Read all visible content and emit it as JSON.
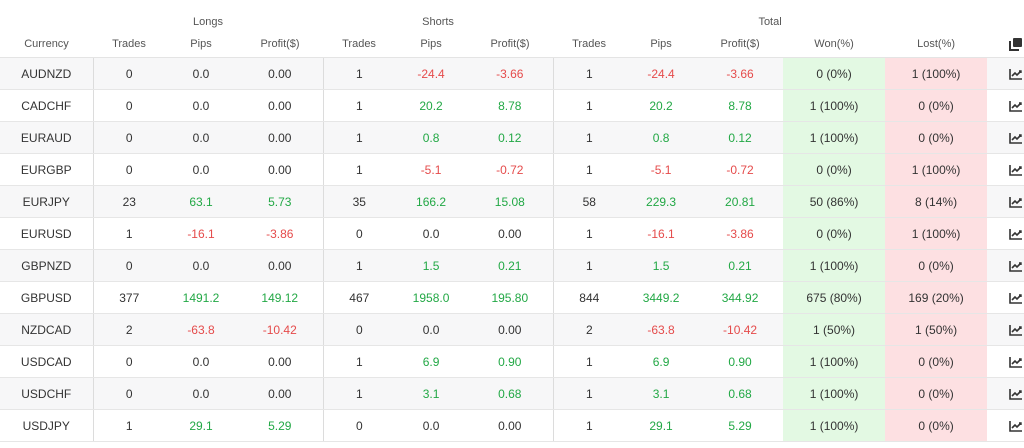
{
  "groups": {
    "longs": "Longs",
    "shorts": "Shorts",
    "total": "Total"
  },
  "columns": {
    "currency": "Currency",
    "longs_trades": "Trades",
    "longs_pips": "Pips",
    "longs_profit": "Profit($)",
    "shorts_trades": "Trades",
    "shorts_pips": "Pips",
    "shorts_profit": "Profit($)",
    "total_trades": "Trades",
    "total_pips": "Pips",
    "total_profit": "Profit($)",
    "won": "Won(%)",
    "lost": "Lost(%)"
  },
  "icons": {
    "header": "copy-icon",
    "row": "chart-line-icon"
  },
  "colors": {
    "positive": "#22a845",
    "negative": "#e54b4b",
    "won_bg": "#e3f9e3",
    "lost_bg": "#fde0e2"
  },
  "rows": [
    {
      "currency": "AUDNZD",
      "l_trades": "0",
      "l_pips": "0.0",
      "l_profit": "0.00",
      "s_trades": "1",
      "s_pips": "-24.4",
      "s_profit": "-3.66",
      "t_trades": "1",
      "t_pips": "-24.4",
      "t_profit": "-3.66",
      "won": "0 (0%)",
      "lost": "1 (100%)"
    },
    {
      "currency": "CADCHF",
      "l_trades": "0",
      "l_pips": "0.0",
      "l_profit": "0.00",
      "s_trades": "1",
      "s_pips": "20.2",
      "s_profit": "8.78",
      "t_trades": "1",
      "t_pips": "20.2",
      "t_profit": "8.78",
      "won": "1 (100%)",
      "lost": "0 (0%)"
    },
    {
      "currency": "EURAUD",
      "l_trades": "0",
      "l_pips": "0.0",
      "l_profit": "0.00",
      "s_trades": "1",
      "s_pips": "0.8",
      "s_profit": "0.12",
      "t_trades": "1",
      "t_pips": "0.8",
      "t_profit": "0.12",
      "won": "1 (100%)",
      "lost": "0 (0%)"
    },
    {
      "currency": "EURGBP",
      "l_trades": "0",
      "l_pips": "0.0",
      "l_profit": "0.00",
      "s_trades": "1",
      "s_pips": "-5.1",
      "s_profit": "-0.72",
      "t_trades": "1",
      "t_pips": "-5.1",
      "t_profit": "-0.72",
      "won": "0 (0%)",
      "lost": "1 (100%)"
    },
    {
      "currency": "EURJPY",
      "l_trades": "23",
      "l_pips": "63.1",
      "l_profit": "5.73",
      "s_trades": "35",
      "s_pips": "166.2",
      "s_profit": "15.08",
      "t_trades": "58",
      "t_pips": "229.3",
      "t_profit": "20.81",
      "won": "50 (86%)",
      "lost": "8 (14%)"
    },
    {
      "currency": "EURUSD",
      "l_trades": "1",
      "l_pips": "-16.1",
      "l_profit": "-3.86",
      "s_trades": "0",
      "s_pips": "0.0",
      "s_profit": "0.00",
      "t_trades": "1",
      "t_pips": "-16.1",
      "t_profit": "-3.86",
      "won": "0 (0%)",
      "lost": "1 (100%)"
    },
    {
      "currency": "GBPNZD",
      "l_trades": "0",
      "l_pips": "0.0",
      "l_profit": "0.00",
      "s_trades": "1",
      "s_pips": "1.5",
      "s_profit": "0.21",
      "t_trades": "1",
      "t_pips": "1.5",
      "t_profit": "0.21",
      "won": "1 (100%)",
      "lost": "0 (0%)"
    },
    {
      "currency": "GBPUSD",
      "l_trades": "377",
      "l_pips": "1491.2",
      "l_profit": "149.12",
      "s_trades": "467",
      "s_pips": "1958.0",
      "s_profit": "195.80",
      "t_trades": "844",
      "t_pips": "3449.2",
      "t_profit": "344.92",
      "won": "675 (80%)",
      "lost": "169 (20%)"
    },
    {
      "currency": "NZDCAD",
      "l_trades": "2",
      "l_pips": "-63.8",
      "l_profit": "-10.42",
      "s_trades": "0",
      "s_pips": "0.0",
      "s_profit": "0.00",
      "t_trades": "2",
      "t_pips": "-63.8",
      "t_profit": "-10.42",
      "won": "1 (50%)",
      "lost": "1 (50%)"
    },
    {
      "currency": "USDCAD",
      "l_trades": "0",
      "l_pips": "0.0",
      "l_profit": "0.00",
      "s_trades": "1",
      "s_pips": "6.9",
      "s_profit": "0.90",
      "t_trades": "1",
      "t_pips": "6.9",
      "t_profit": "0.90",
      "won": "1 (100%)",
      "lost": "0 (0%)"
    },
    {
      "currency": "USDCHF",
      "l_trades": "0",
      "l_pips": "0.0",
      "l_profit": "0.00",
      "s_trades": "1",
      "s_pips": "3.1",
      "s_profit": "0.68",
      "t_trades": "1",
      "t_pips": "3.1",
      "t_profit": "0.68",
      "won": "1 (100%)",
      "lost": "0 (0%)"
    },
    {
      "currency": "USDJPY",
      "l_trades": "1",
      "l_pips": "29.1",
      "l_profit": "5.29",
      "s_trades": "0",
      "s_pips": "0.0",
      "s_profit": "0.00",
      "t_trades": "1",
      "t_pips": "29.1",
      "t_profit": "5.29",
      "won": "1 (100%)",
      "lost": "0 (0%)"
    }
  ]
}
